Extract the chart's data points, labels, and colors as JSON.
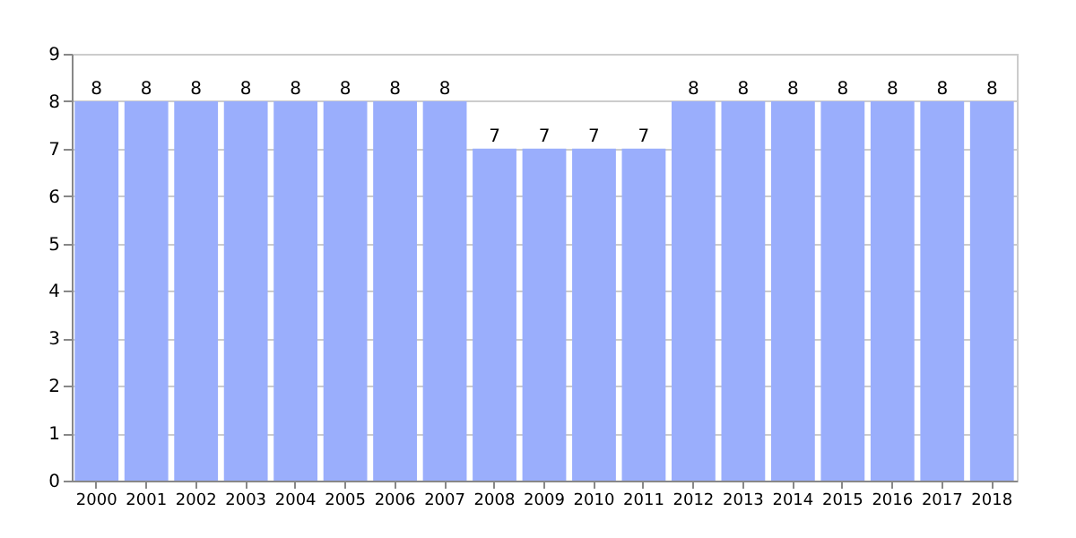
{
  "chart_data": {
    "type": "bar",
    "categories": [
      "2000",
      "2001",
      "2002",
      "2003",
      "2004",
      "2005",
      "2006",
      "2007",
      "2008",
      "2009",
      "2010",
      "2011",
      "2012",
      "2013",
      "2014",
      "2015",
      "2016",
      "2017",
      "2018"
    ],
    "values": [
      8,
      8,
      8,
      8,
      8,
      8,
      8,
      8,
      7,
      7,
      7,
      7,
      8,
      8,
      8,
      8,
      8,
      8,
      8
    ],
    "color": "#9aaefc",
    "ylim": [
      0,
      9
    ],
    "yticks": [
      0,
      1,
      2,
      3,
      4,
      5,
      6,
      7,
      8,
      9
    ],
    "grid": "y",
    "data_labels": true
  }
}
